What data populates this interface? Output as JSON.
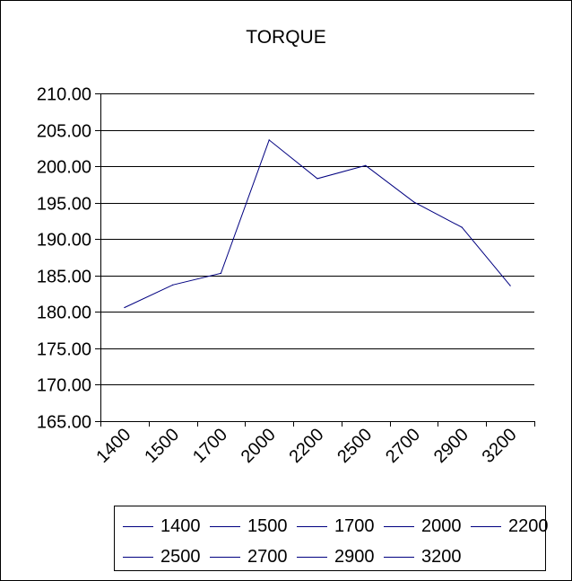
{
  "chart_data": {
    "type": "line",
    "title": "TORQUE",
    "categories": [
      "1400",
      "1500",
      "1700",
      "2000",
      "2200",
      "2500",
      "2700",
      "2900",
      "3200"
    ],
    "series": [
      {
        "values": [
          180.6,
          183.7,
          185.3,
          203.6,
          198.3,
          200.1,
          195.1,
          191.6,
          183.6
        ]
      }
    ],
    "x_tick_labels": [
      "1400",
      "1500",
      "1700",
      "2000",
      "2200",
      "2500",
      "2700",
      "2900",
      "3200"
    ],
    "y_tick_labels": [
      "210.00",
      "205.00",
      "200.00",
      "195.00",
      "190.00",
      "185.00",
      "180.00",
      "175.00",
      "170.00",
      "165.00"
    ],
    "ylim": [
      165,
      210
    ],
    "y_step": 5,
    "grid": true,
    "legend_position": "bottom",
    "legend_entries": [
      "1400",
      "1500",
      "1700",
      "2000",
      "2200",
      "2500",
      "2700",
      "2900",
      "3200"
    ],
    "line_color": "#000080"
  }
}
